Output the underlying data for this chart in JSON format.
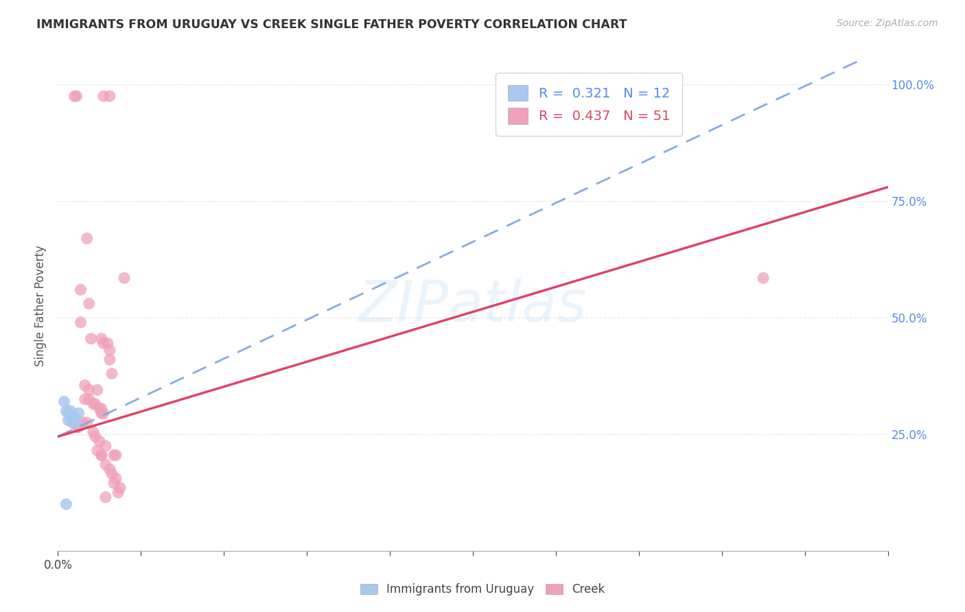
{
  "title": "IMMIGRANTS FROM URUGUAY VS CREEK SINGLE FATHER POVERTY CORRELATION CHART",
  "source": "Source: ZipAtlas.com",
  "ylabel_label": "Single Father Poverty",
  "xlim": [
    0.0,
    0.4
  ],
  "ylim": [
    0.0,
    1.05
  ],
  "xtick_positions": [
    0.0,
    0.04,
    0.08,
    0.12,
    0.16,
    0.2,
    0.24,
    0.28,
    0.32,
    0.36,
    0.4
  ],
  "xtick_labels_show": {
    "0.0": "0.0%"
  },
  "ytick_positions": [
    0.0,
    0.25,
    0.5,
    0.75,
    1.0
  ],
  "ytick_labels_right": [
    "",
    "25.0%",
    "50.0%",
    "75.0%",
    "100.0%"
  ],
  "r_uruguay": 0.321,
  "n_uruguay": 12,
  "r_creek": 0.437,
  "n_creek": 51,
  "background_color": "#ffffff",
  "grid_color": "#e8e8e8",
  "watermark": "ZIPatlas",
  "uruguay_color": "#a8c8f0",
  "creek_color": "#f0a0b8",
  "uruguay_trendline_color": "#88aadd",
  "creek_trendline_color": "#dd4466",
  "uruguay_trendline": [
    0.0,
    0.245,
    0.4,
    1.08
  ],
  "creek_trendline": [
    0.0,
    0.245,
    0.4,
    0.78
  ],
  "uruguay_points": [
    [
      0.003,
      0.32
    ],
    [
      0.004,
      0.3
    ],
    [
      0.005,
      0.295
    ],
    [
      0.005,
      0.28
    ],
    [
      0.006,
      0.3
    ],
    [
      0.006,
      0.285
    ],
    [
      0.007,
      0.285
    ],
    [
      0.007,
      0.275
    ],
    [
      0.008,
      0.28
    ],
    [
      0.009,
      0.275
    ],
    [
      0.01,
      0.295
    ],
    [
      0.004,
      0.1
    ]
  ],
  "creek_points": [
    [
      0.008,
      0.975
    ],
    [
      0.009,
      0.975
    ],
    [
      0.022,
      0.975
    ],
    [
      0.025,
      0.975
    ],
    [
      0.014,
      0.67
    ],
    [
      0.011,
      0.56
    ],
    [
      0.015,
      0.53
    ],
    [
      0.011,
      0.49
    ],
    [
      0.032,
      0.585
    ],
    [
      0.016,
      0.455
    ],
    [
      0.021,
      0.455
    ],
    [
      0.022,
      0.445
    ],
    [
      0.024,
      0.445
    ],
    [
      0.025,
      0.43
    ],
    [
      0.025,
      0.41
    ],
    [
      0.026,
      0.38
    ],
    [
      0.013,
      0.355
    ],
    [
      0.015,
      0.345
    ],
    [
      0.019,
      0.345
    ],
    [
      0.013,
      0.325
    ],
    [
      0.015,
      0.325
    ],
    [
      0.017,
      0.315
    ],
    [
      0.018,
      0.315
    ],
    [
      0.02,
      0.305
    ],
    [
      0.021,
      0.305
    ],
    [
      0.021,
      0.295
    ],
    [
      0.022,
      0.295
    ],
    [
      0.007,
      0.285
    ],
    [
      0.008,
      0.285
    ],
    [
      0.012,
      0.275
    ],
    [
      0.014,
      0.275
    ],
    [
      0.009,
      0.265
    ],
    [
      0.01,
      0.265
    ],
    [
      0.017,
      0.255
    ],
    [
      0.018,
      0.245
    ],
    [
      0.02,
      0.235
    ],
    [
      0.023,
      0.225
    ],
    [
      0.019,
      0.215
    ],
    [
      0.021,
      0.205
    ],
    [
      0.021,
      0.205
    ],
    [
      0.027,
      0.205
    ],
    [
      0.028,
      0.205
    ],
    [
      0.023,
      0.185
    ],
    [
      0.025,
      0.175
    ],
    [
      0.026,
      0.165
    ],
    [
      0.028,
      0.155
    ],
    [
      0.027,
      0.145
    ],
    [
      0.03,
      0.135
    ],
    [
      0.029,
      0.125
    ],
    [
      0.023,
      0.115
    ],
    [
      0.34,
      0.585
    ]
  ]
}
